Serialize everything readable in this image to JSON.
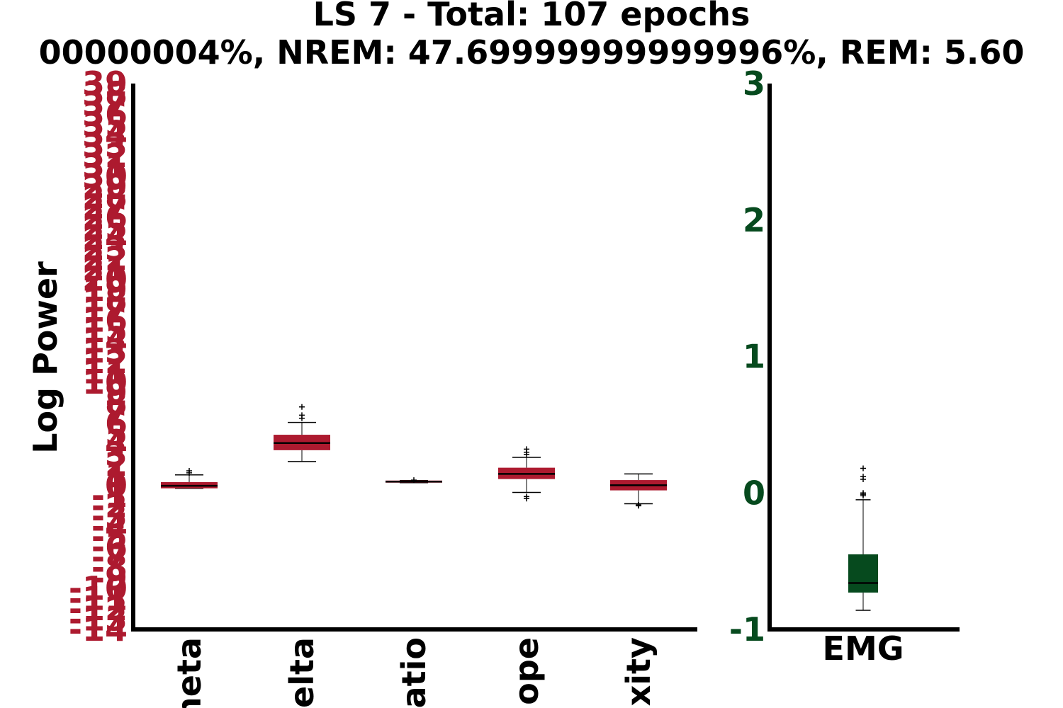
{
  "colors": {
    "left_box": "#ad1a2f",
    "right_box": "#064a1e",
    "whisker": "#808080",
    "median": "#000000",
    "axis": "#000000"
  },
  "chart_data": [
    {
      "type": "box",
      "title_line1": "LS 7 - Total: 107 epochs",
      "title_line2": "00000004%, NREM: 47.69999999999996%, REM: 5.60",
      "ylabel": "Log Power",
      "categories": [
        "heta",
        "elta",
        "atio",
        "ope",
        "xity"
      ],
      "ylim": [
        -14,
        39
      ],
      "yticks": [
        -14,
        -13,
        -12,
        -11,
        -10,
        -9,
        -8,
        -7,
        -6,
        -5,
        -4,
        -3,
        -2,
        -1,
        0,
        1,
        2,
        3,
        4,
        5,
        6,
        7,
        8,
        9,
        10,
        11,
        12,
        13,
        14,
        15,
        16,
        17,
        18,
        19,
        20,
        21,
        22,
        23,
        24,
        25,
        26,
        27,
        28,
        29,
        30,
        31,
        32,
        33,
        34,
        35,
        36,
        37,
        38,
        39
      ],
      "ytick_labels": [
        "-14",
        "-13",
        "-12",
        "-11",
        "-10",
        "-9",
        "-8",
        "-7",
        "-6",
        "-5",
        "-4",
        "-3",
        "-2",
        "-1",
        "0",
        "1",
        "2",
        "3",
        "4",
        "5",
        "6",
        "7",
        "8",
        "9",
        "10",
        "11",
        "12",
        "13",
        "14",
        "15",
        "16",
        "17",
        "18",
        "19",
        "20",
        "21",
        "22",
        "23",
        "24",
        "25",
        "26",
        "27",
        "28",
        "29",
        "30",
        "31",
        "32",
        "33",
        "34",
        "35",
        "36",
        "37",
        "38",
        "39"
      ],
      "boxes": [
        {
          "whislo": -0.3,
          "q1": -0.3,
          "med": -0.05,
          "q3": 0.3,
          "whishi": 1.0,
          "fliers": [
            1.2,
            1.4
          ]
        },
        {
          "whislo": 2.3,
          "q1": 3.4,
          "med": 4.1,
          "q3": 4.9,
          "whishi": 6.1,
          "fliers": [
            6.5,
            6.8,
            7.6
          ]
        },
        {
          "whislo": 0.25,
          "q1": 0.25,
          "med": 0.35,
          "q3": 0.45,
          "whishi": 0.45,
          "fliers": [
            0.5
          ]
        },
        {
          "whislo": -0.7,
          "q1": 0.6,
          "med": 1.1,
          "q3": 1.7,
          "whishi": 2.7,
          "fliers": [
            -1.3,
            -1.1,
            3.0,
            3.2,
            3.5
          ]
        },
        {
          "whislo": -1.8,
          "q1": -0.5,
          "med": 0.0,
          "q3": 0.5,
          "whishi": 1.1,
          "fliers": [
            -1.9,
            -2.0
          ]
        }
      ]
    },
    {
      "type": "box",
      "categories": [
        "EMG"
      ],
      "ylim": [
        -1,
        3
      ],
      "yticks": [
        -1,
        0,
        1,
        2,
        3
      ],
      "ytick_labels": [
        "-1",
        "0",
        "1",
        "2",
        "3"
      ],
      "boxes": [
        {
          "whislo": -0.86,
          "q1": -0.73,
          "med": -0.66,
          "q3": -0.45,
          "whishi": -0.05,
          "fliers": [
            -0.02,
            -0.01,
            0.0,
            0.1,
            0.12,
            0.18
          ]
        }
      ]
    }
  ]
}
